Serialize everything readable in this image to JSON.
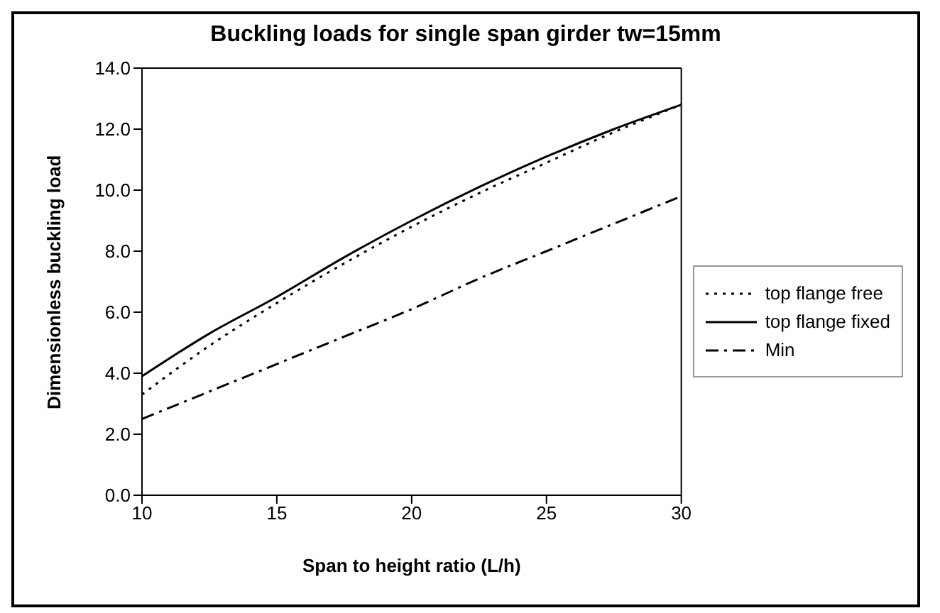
{
  "chart_data": {
    "type": "line",
    "title": "Buckling loads for single span girder tw=15mm",
    "xlabel": "Span to height ratio (L/h)",
    "ylabel": "Dimensionless buckling load",
    "x": [
      10,
      12.5,
      15,
      17.5,
      20,
      22.5,
      25,
      27.5,
      30
    ],
    "series": [
      {
        "name": "top flange free",
        "color": "#000000",
        "line_style": "dotted",
        "values": [
          3.3,
          4.9,
          6.3,
          7.6,
          8.8,
          9.9,
          10.9,
          11.9,
          12.8
        ]
      },
      {
        "name": "top flange fixed",
        "color": "#000000",
        "line_style": "solid",
        "values": [
          3.9,
          5.3,
          6.5,
          7.8,
          9.0,
          10.1,
          11.1,
          12.0,
          12.8
        ]
      },
      {
        "name": "Min",
        "color": "#000000",
        "line_style": "dashdot",
        "values": [
          2.5,
          3.4,
          4.3,
          5.2,
          6.1,
          7.1,
          8.0,
          8.9,
          9.8
        ]
      }
    ],
    "xlim": [
      10,
      30
    ],
    "xticks": [
      10,
      15,
      20,
      25,
      30
    ],
    "ylim": [
      0,
      14
    ],
    "yticks": [
      {
        "value": 0,
        "label": "0.0"
      },
      {
        "value": 2,
        "label": "2.0"
      },
      {
        "value": 4,
        "label": "4.0"
      },
      {
        "value": 6,
        "label": "6.0"
      },
      {
        "value": 8,
        "label": "8.0"
      },
      {
        "value": 10,
        "label": "10.0"
      },
      {
        "value": 12,
        "label": "12.0"
      },
      {
        "value": 14,
        "label": "14.0"
      }
    ],
    "grid": false,
    "legend": "right",
    "marker": "none"
  }
}
